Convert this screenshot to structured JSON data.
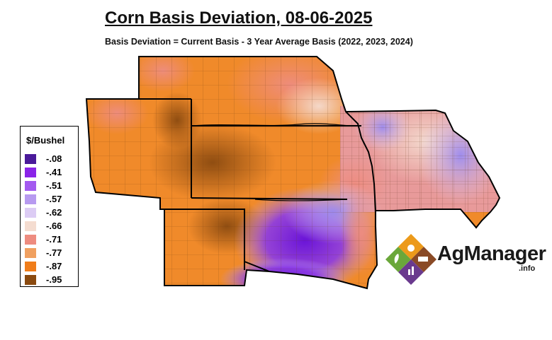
{
  "title": "Corn Basis Deviation, 08-06-2025",
  "subtitle": "Basis Deviation = Current Basis - 3 Year Average Basis (2022, 2023, 2024)",
  "legend": {
    "title": "$/Bushel",
    "items": [
      {
        "label": "-.08",
        "color": "#4a1a9a"
      },
      {
        "label": "-.41",
        "color": "#8a24e8"
      },
      {
        "label": "-.51",
        "color": "#a35af0"
      },
      {
        "label": "-.57",
        "color": "#b79af0"
      },
      {
        "label": "-.62",
        "color": "#dcccf4"
      },
      {
        "label": "-.66",
        "color": "#f4dcd0"
      },
      {
        "label": "-.71",
        "color": "#ee8c80"
      },
      {
        "label": "-.77",
        "color": "#f0a060"
      },
      {
        "label": "-.87",
        "color": "#f07d1a"
      },
      {
        "label": "-.95",
        "color": "#8a4a10"
      }
    ]
  },
  "logo": {
    "name": "AgManager",
    "suffix": ".info",
    "colors": {
      "orange": "#e87a1e",
      "green": "#6aa73a",
      "purple": "#6a3a8e",
      "brown": "#8a4a26",
      "yellow": "#f2c21a"
    }
  },
  "map": {
    "border_color": "#000000",
    "county_line_color": "#6b3a10"
  }
}
